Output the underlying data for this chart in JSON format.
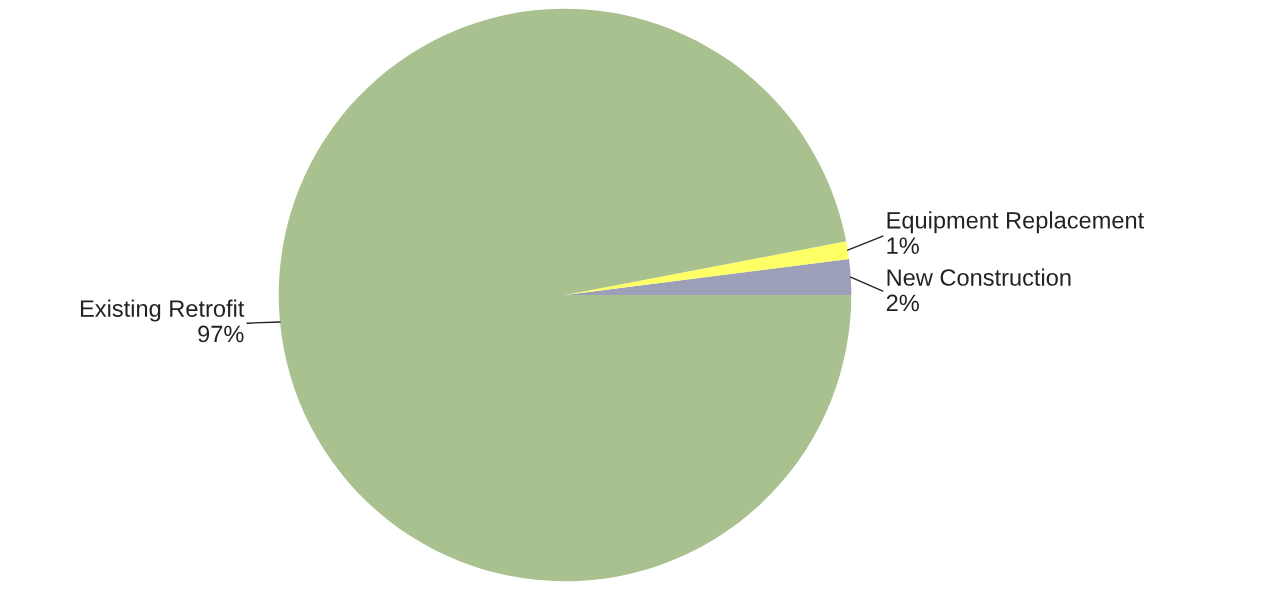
{
  "chart_data": {
    "type": "pie",
    "categories": [
      "New Construction",
      "Equipment Replacement",
      "Existing Retrofit"
    ],
    "values": [
      2,
      1,
      97
    ],
    "value_labels": [
      "2%",
      "1%",
      "97%"
    ],
    "colors": [
      "#9c9fb8",
      "#ffff66",
      "#a9c18f"
    ],
    "legend": false
  }
}
